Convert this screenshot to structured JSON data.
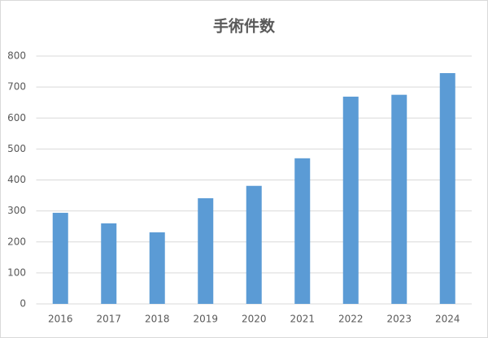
{
  "chart_data": {
    "type": "bar",
    "title": "手術件数",
    "categories": [
      "2016",
      "2017",
      "2018",
      "2019",
      "2020",
      "2021",
      "2022",
      "2023",
      "2024"
    ],
    "values": [
      294,
      260,
      231,
      341,
      381,
      470,
      669,
      675,
      745
    ],
    "color": "#5b9bd5",
    "ylim": [
      0,
      800
    ],
    "yticks": [
      0,
      100,
      200,
      300,
      400,
      500,
      600,
      700,
      800
    ],
    "grid": true
  }
}
